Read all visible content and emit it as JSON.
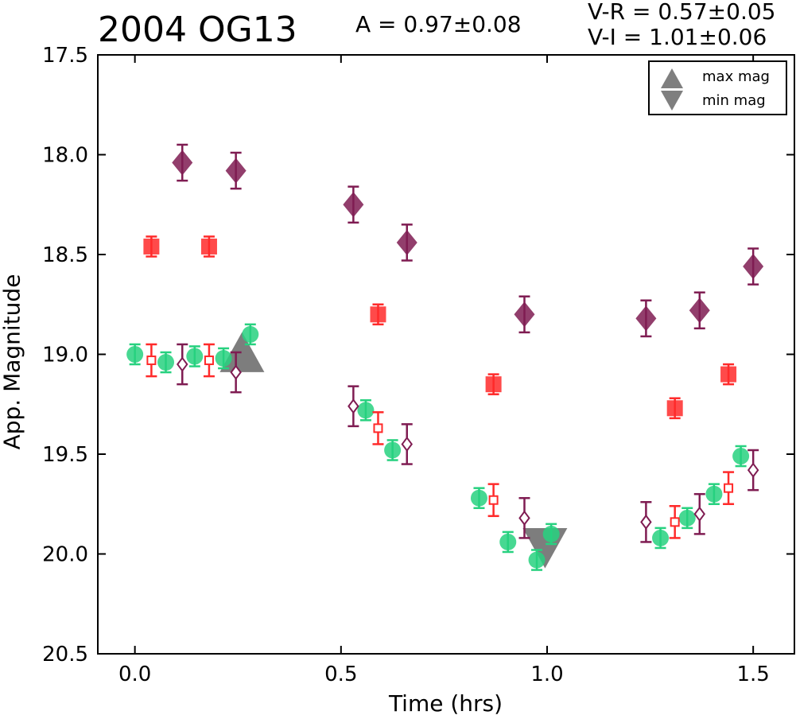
{
  "chart_data": {
    "type": "scatter",
    "title": "2004 OG13",
    "annotations": {
      "amplitude": "A  = 0.97±0.08",
      "vr": "V-R = 0.57±0.05",
      "vi": "V-I  = 1.01±0.06"
    },
    "xlabel": "Time (hrs)",
    "ylabel": "App. Magnitude",
    "xlim": [
      -0.09,
      1.6
    ],
    "ylim": [
      20.5,
      17.5
    ],
    "y_inverted": true,
    "x_ticks": [
      "0.0",
      "0.5",
      "1.0",
      "1.5"
    ],
    "y_ticks": [
      "17.5",
      "18.0",
      "18.5",
      "19.0",
      "19.5",
      "20.0",
      "20.5"
    ],
    "grid": false,
    "legend_position": "top-right",
    "legend": [
      {
        "label": "max mag",
        "marker": "triangle-up",
        "color": "#7f7f7f"
      },
      {
        "label": "min mag",
        "marker": "triangle-down",
        "color": "#7f7f7f"
      }
    ],
    "series": [
      {
        "marker": "square-filled",
        "color": "#ff2a2a",
        "x": [
          0.04,
          0.18,
          0.59,
          0.87,
          1.31,
          1.44
        ],
        "y": [
          18.46,
          18.46,
          18.8,
          19.15,
          19.27,
          19.1
        ],
        "err": [
          0.05,
          0.05,
          0.05,
          0.05,
          0.05,
          0.05
        ]
      },
      {
        "marker": "diamond-filled",
        "color": "#7f1c52",
        "x": [
          0.115,
          0.245,
          0.53,
          0.66,
          0.945,
          1.24,
          1.37,
          1.5
        ],
        "y": [
          18.04,
          18.08,
          18.25,
          18.44,
          18.8,
          18.82,
          18.78,
          18.56
        ],
        "err": [
          0.09,
          0.09,
          0.09,
          0.09,
          0.09,
          0.09,
          0.09,
          0.09
        ]
      },
      {
        "marker": "circle-filled",
        "color": "#27d17f",
        "x": [
          0.0,
          0.075,
          0.145,
          0.215,
          0.28,
          0.56,
          0.625,
          0.835,
          0.905,
          0.975,
          1.01,
          1.275,
          1.34,
          1.405,
          1.47
        ],
        "y": [
          19.0,
          19.04,
          19.01,
          19.02,
          18.9,
          19.28,
          19.48,
          19.72,
          19.94,
          20.03,
          19.9,
          19.92,
          19.82,
          19.7,
          19.51
        ],
        "err": [
          0.05,
          0.05,
          0.05,
          0.05,
          0.05,
          0.05,
          0.05,
          0.05,
          0.05,
          0.05,
          0.05,
          0.05,
          0.05,
          0.05,
          0.05
        ]
      },
      {
        "marker": "square-open",
        "color": "#ff2a2a",
        "x": [
          0.04,
          0.18,
          0.59,
          0.87,
          1.31,
          1.44
        ],
        "y": [
          19.03,
          19.03,
          19.37,
          19.73,
          19.84,
          19.67
        ],
        "err": [
          0.08,
          0.08,
          0.08,
          0.08,
          0.08,
          0.08
        ]
      },
      {
        "marker": "diamond-open",
        "color": "#7f1c52",
        "x": [
          0.115,
          0.245,
          0.53,
          0.66,
          0.945,
          1.24,
          1.37,
          1.5
        ],
        "y": [
          19.05,
          19.09,
          19.26,
          19.45,
          19.82,
          19.84,
          19.8,
          19.58
        ],
        "err": [
          0.1,
          0.1,
          0.1,
          0.1,
          0.1,
          0.1,
          0.1,
          0.1
        ]
      }
    ],
    "extrema": [
      {
        "type": "max",
        "marker": "triangle-up",
        "x": 0.26,
        "y": 19.0
      },
      {
        "type": "min",
        "marker": "triangle-down",
        "x": 0.995,
        "y": 19.96
      }
    ]
  }
}
